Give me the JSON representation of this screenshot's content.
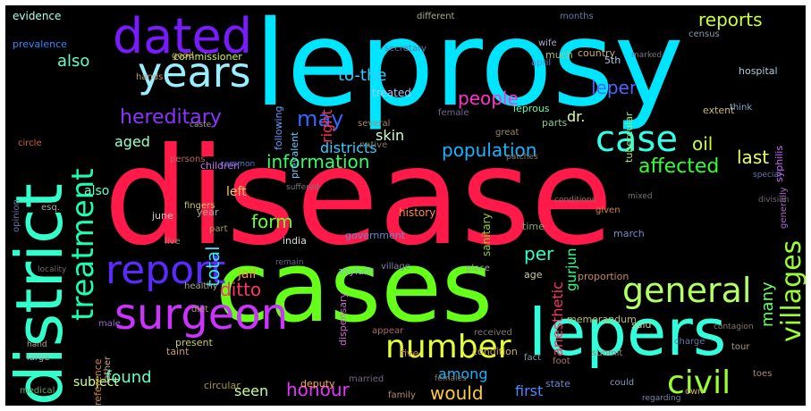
{
  "background": "#000000",
  "words": [
    {
      "text": "disease",
      "color": "#ff1a4a"
    },
    {
      "text": "leprosy",
      "color": "#00e5ff"
    },
    {
      "text": "cases",
      "color": "#66ff1a"
    },
    {
      "text": "lepers",
      "color": "#33ffdd"
    },
    {
      "text": "district",
      "color": "#33ffcc"
    },
    {
      "text": "dated",
      "color": "#7a1aff"
    },
    {
      "text": "years",
      "color": "#99eeff"
    },
    {
      "text": "surgeon",
      "color": "#cc33ff"
    },
    {
      "text": "report",
      "color": "#5a2aff"
    },
    {
      "text": "general",
      "color": "#b3ff66"
    },
    {
      "text": "number",
      "color": "#e6ff33"
    },
    {
      "text": "civil",
      "color": "#99ff33"
    },
    {
      "text": "case",
      "color": "#33ffe6"
    },
    {
      "text": "treatment",
      "color": "#1affb3"
    },
    {
      "text": "hereditary",
      "color": "#8c33ff"
    },
    {
      "text": "may",
      "color": "#3366ff"
    },
    {
      "text": "population",
      "color": "#1ab3ff"
    },
    {
      "text": "information",
      "color": "#33ff66"
    },
    {
      "text": "affected",
      "color": "#33ff33"
    },
    {
      "text": "reports",
      "color": "#ccff33"
    },
    {
      "text": "people",
      "color": "#ff33cc"
    },
    {
      "text": "leper",
      "color": "#4d66ff"
    },
    {
      "text": "to-the",
      "color": "#33ccff"
    },
    {
      "text": "also",
      "color": "#66ffcc"
    },
    {
      "text": "villages",
      "color": "#99ff33"
    },
    {
      "text": "ditto",
      "color": "#ff3366"
    },
    {
      "text": "honour",
      "color": "#e633ff"
    },
    {
      "text": "would",
      "color": "#ffcc33"
    },
    {
      "text": "among",
      "color": "#1ab3ff"
    },
    {
      "text": "found",
      "color": "#66ffcc"
    },
    {
      "text": "form",
      "color": "#66ff33"
    },
    {
      "text": "total",
      "color": "#33e6ff"
    },
    {
      "text": "per",
      "color": "#33ffcc"
    },
    {
      "text": "oil",
      "color": "#ccff33"
    },
    {
      "text": "last",
      "color": "#e6ff66"
    },
    {
      "text": "aged",
      "color": "#99ffcc"
    },
    {
      "text": "skin",
      "color": "#ccffcc"
    },
    {
      "text": "districts",
      "color": "#33ccff"
    },
    {
      "text": "seen",
      "color": "#ccff99"
    },
    {
      "text": "first",
      "color": "#4d88ff"
    },
    {
      "text": "many",
      "color": "#66ff66"
    },
    {
      "text": "anesthetic",
      "color": "#ff3366"
    },
    {
      "text": "gurjun",
      "color": "#33ff88"
    },
    {
      "text": "dr.",
      "color": "#e6ff99"
    },
    {
      "text": "right",
      "color": "#ff3355"
    },
    {
      "text": "commissioner",
      "color": "#ccff33"
    },
    {
      "text": "also",
      "color": "#66ffcc"
    },
    {
      "text": "evidence",
      "color": "#aaffee"
    },
    {
      "text": "prevalence",
      "color": "#3388ff"
    },
    {
      "text": "subject",
      "color": "#ccff99"
    },
    {
      "text": "reference",
      "color": "#cc8833"
    },
    {
      "text": "medical",
      "color": "#66aa66"
    },
    {
      "text": "circular",
      "color": "#aa9933"
    },
    {
      "text": "deputy",
      "color": "#ffaa33"
    },
    {
      "text": "present",
      "color": "#cccc66"
    },
    {
      "text": "left",
      "color": "#ffcc66"
    },
    {
      "text": "jail",
      "color": "#ff9933"
    },
    {
      "text": "history",
      "color": "#ff8844"
    },
    {
      "text": "sanitary",
      "color": "#99cc33"
    },
    {
      "text": "following",
      "color": "#6699ff"
    },
    {
      "text": "prevalent",
      "color": "#66ccff"
    },
    {
      "text": "treated",
      "color": "#99ccff"
    },
    {
      "text": "leprous",
      "color": "#66ffaa"
    },
    {
      "text": "parts",
      "color": "#88cc88"
    },
    {
      "text": "5th",
      "color": "#aaccee"
    },
    {
      "text": "tubercular",
      "color": "#99ee66"
    },
    {
      "text": "extent",
      "color": "#ccbb66"
    },
    {
      "text": "syphilis",
      "color": "#cc66ff"
    },
    {
      "text": "hospital",
      "color": "#aaccdd"
    },
    {
      "text": "much",
      "color": "#bbbb66"
    },
    {
      "text": "country",
      "color": "#ccaa66"
    },
    {
      "text": "good",
      "color": "#ccaa66"
    },
    {
      "text": "children",
      "color": "#cc66ff"
    },
    {
      "text": "persons",
      "color": "#bb6655"
    },
    {
      "text": "esq.",
      "color": "#aaaaaa"
    },
    {
      "text": "circle",
      "color": "#cc6633"
    },
    {
      "text": "june",
      "color": "#cccccc"
    },
    {
      "text": "year",
      "color": "#aaaa99"
    },
    {
      "text": "part",
      "color": "#aa9966"
    },
    {
      "text": "india",
      "color": "#dddddd"
    },
    {
      "text": "government",
      "color": "#6688cc"
    },
    {
      "text": "time",
      "color": "#88aa66"
    },
    {
      "text": "march",
      "color": "#7788cc"
    },
    {
      "text": "asylum",
      "color": "#88bbcc"
    },
    {
      "text": "place",
      "color": "#99aa99"
    },
    {
      "text": "proportion",
      "color": "#cc8855"
    },
    {
      "text": "age",
      "color": "#cccc99"
    },
    {
      "text": "memorandum",
      "color": "#bbbb66"
    },
    {
      "text": "said",
      "color": "#cccc88"
    },
    {
      "text": "dispensary",
      "color": "#cc66cc"
    },
    {
      "text": "taint",
      "color": "#cc9966"
    },
    {
      "text": "state",
      "color": "#6688cc"
    },
    {
      "text": "male",
      "color": "#9966cc"
    },
    {
      "text": "father",
      "color": "#ccaa88"
    },
    {
      "text": "five",
      "color": "#cc8866"
    },
    {
      "text": "condition",
      "color": "#ccaa66"
    },
    {
      "text": "large",
      "color": "#aaaaaa"
    },
    {
      "text": "opinion",
      "color": "#6677aa"
    },
    {
      "text": "generally",
      "color": "#aa66cc"
    },
    {
      "text": "think",
      "color": "#88aacc"
    },
    {
      "text": "different",
      "color": "#aaaa88"
    },
    {
      "text": "months",
      "color": "#6677aa"
    },
    {
      "text": "wife",
      "color": "#aaaacc"
    },
    {
      "text": "april",
      "color": "#6688cc"
    },
    {
      "text": "census",
      "color": "#8899aa"
    },
    {
      "text": "secretary",
      "color": "#6677aa"
    },
    {
      "text": "great",
      "color": "#998866"
    },
    {
      "text": "several",
      "color": "#aa8866"
    },
    {
      "text": "native",
      "color": "#887766"
    },
    {
      "text": "healthy",
      "color": "#aaaa88"
    },
    {
      "text": "given",
      "color": "#cc8844"
    },
    {
      "text": "fingers",
      "color": "#cccc66"
    },
    {
      "text": "hands",
      "color": "#bb9977"
    },
    {
      "text": "submit",
      "color": "#998877"
    },
    {
      "text": "diet",
      "color": "#aa9966"
    },
    {
      "text": "toes",
      "color": "#aa8877"
    },
    {
      "text": "could",
      "color": "#8899bb"
    },
    {
      "text": "tour",
      "color": "#aa9988"
    },
    {
      "text": "own",
      "color": "#ccaa66"
    },
    {
      "text": "fact",
      "color": "#8899aa"
    },
    {
      "text": "live",
      "color": "#998866"
    },
    {
      "text": "village",
      "color": "#7788aa"
    },
    {
      "text": "charge",
      "color": "#6677aa"
    },
    {
      "text": "appear",
      "color": "#aa6666"
    },
    {
      "text": "family",
      "color": "#bb8866"
    },
    {
      "text": "married",
      "color": "#776688"
    },
    {
      "text": "foot",
      "color": "#aa7766"
    },
    {
      "text": "received",
      "color": "#887766"
    },
    {
      "text": "suffered",
      "color": "#777777"
    },
    {
      "text": "regarding",
      "color": "#7788aa"
    },
    {
      "text": "females",
      "color": "#887766"
    },
    {
      "text": "remain",
      "color": "#666688"
    },
    {
      "text": "contagion",
      "color": "#887766"
    },
    {
      "text": "hand",
      "color": "#aaaa88"
    },
    {
      "text": "caste",
      "color": "#aa9999"
    },
    {
      "text": "common",
      "color": "#5577cc"
    },
    {
      "text": "female",
      "color": "#776699"
    },
    {
      "text": "mixed",
      "color": "#777777"
    },
    {
      "text": "locality",
      "color": "#776666"
    },
    {
      "text": "special",
      "color": "#6677aa"
    },
    {
      "text": "division",
      "color": "#776677"
    },
    {
      "text": "conditions",
      "color": "#777766"
    },
    {
      "text": "patches",
      "color": "#887766"
    },
    {
      "text": "marked",
      "color": "#777788"
    }
  ]
}
